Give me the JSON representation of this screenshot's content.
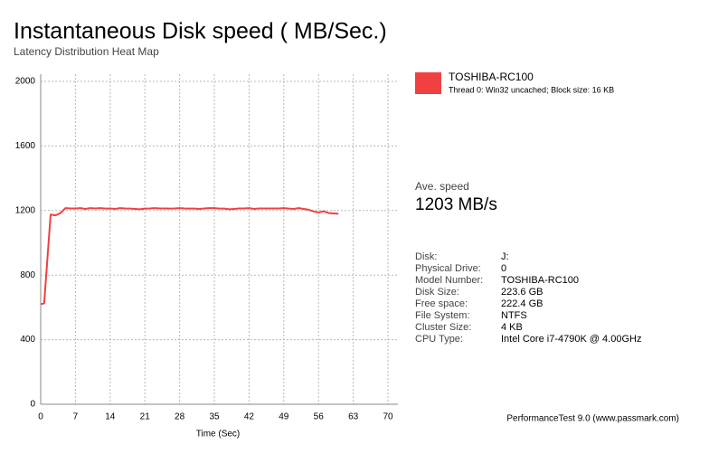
{
  "chart_data": {
    "type": "line",
    "title": "Instantaneous Disk speed ( MB/Sec.)",
    "subtitle": "Latency Distribution Heat Map",
    "x_label": "Time (Sec)",
    "x": [
      0,
      0.7,
      2,
      3,
      4,
      5,
      6,
      7,
      8,
      9,
      10,
      11,
      12,
      13,
      14,
      15,
      16,
      17,
      18,
      19,
      20,
      21,
      22,
      23,
      24,
      25,
      26,
      27,
      28,
      29,
      30,
      31,
      32,
      33,
      34,
      35,
      36,
      37,
      38,
      39,
      40,
      41,
      42,
      43,
      44,
      45,
      46,
      47,
      48,
      49,
      50,
      51,
      52,
      53,
      54,
      55,
      56,
      57,
      58,
      59,
      60
    ],
    "series": [
      {
        "name": "TOSHIBA-RC100",
        "description": "Thread 0: Win32 uncached; Block size: 16 KB",
        "color": "#f04040",
        "values": [
          620,
          625,
          1175,
          1170,
          1185,
          1215,
          1213,
          1213,
          1215,
          1210,
          1215,
          1213,
          1215,
          1212,
          1213,
          1210,
          1215,
          1213,
          1212,
          1210,
          1208,
          1212,
          1213,
          1215,
          1213,
          1213,
          1212,
          1213,
          1215,
          1213,
          1212,
          1212,
          1210,
          1213,
          1215,
          1215,
          1212,
          1212,
          1208,
          1210,
          1213,
          1213,
          1215,
          1210,
          1213,
          1213,
          1213,
          1213,
          1213,
          1215,
          1212,
          1210,
          1215,
          1210,
          1205,
          1195,
          1188,
          1195,
          1185,
          1182,
          1180
        ]
      }
    ],
    "xlim": [
      0,
      72
    ],
    "ylim": [
      0,
      2000
    ],
    "xticks": [
      0,
      7,
      14,
      21,
      28,
      35,
      42,
      49,
      56,
      63,
      70
    ],
    "yticks": [
      0,
      400,
      800,
      1200,
      1600,
      2000
    ],
    "grid": true
  },
  "summary": {
    "label": "Ave. speed",
    "value": "1203 MB/s"
  },
  "details": {
    "rows": [
      [
        "Disk:",
        "J:"
      ],
      [
        "Physical Drive:",
        "0"
      ],
      [
        "Model Number:",
        "TOSHIBA-RC100"
      ],
      [
        "Disk Size:",
        "223.6 GB"
      ],
      [
        "Free space:",
        "222.4 GB"
      ],
      [
        "File System:",
        "NTFS"
      ],
      [
        "Cluster Size:",
        "4 KB"
      ],
      [
        "CPU Type:",
        "Intel Core i7-4790K @ 4.00GHz"
      ]
    ]
  },
  "footer": "PerformanceTest 9.0 (www.passmark.com)"
}
